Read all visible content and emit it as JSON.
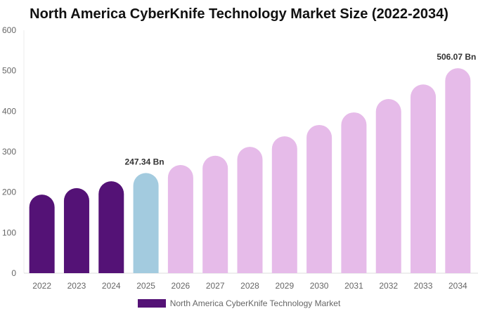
{
  "chart_data": {
    "type": "bar",
    "title": "North America CyberKnife Technology Market Size (2022-2034)",
    "categories": [
      "2022",
      "2023",
      "2024",
      "2025",
      "2026",
      "2027",
      "2028",
      "2029",
      "2030",
      "2031",
      "2032",
      "2033",
      "2034"
    ],
    "series": [
      {
        "name": "North America CyberKnife Technology Market",
        "values": [
          194,
          210,
          227,
          247.34,
          267,
          290,
          312,
          338,
          366,
          397,
          430,
          466,
          506.07
        ]
      }
    ],
    "data_labels": {
      "3": "247.34 Bn",
      "12": "506.07 Bn"
    },
    "ylim": [
      0,
      600
    ],
    "yticks": [
      0,
      100,
      200,
      300,
      400,
      500,
      600
    ],
    "grid": false,
    "legend": "bottom",
    "colors": {
      "historical": "#541276",
      "current": "#a3cbdf",
      "forecast": "#e6bbe9",
      "legend": "#541276"
    }
  }
}
